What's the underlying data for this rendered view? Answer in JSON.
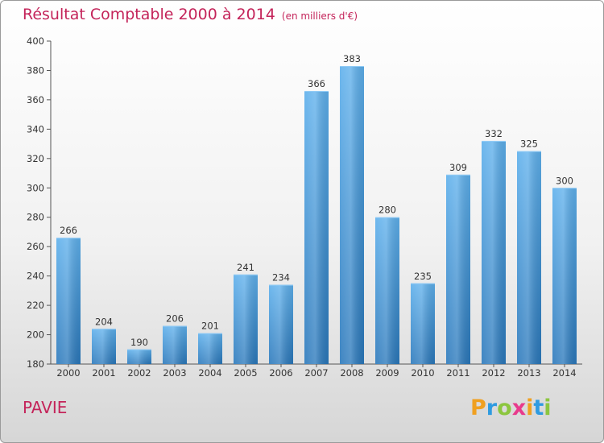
{
  "chart_data": {
    "type": "bar",
    "title": "Résultat Comptable 2000 à 2014",
    "subtitle": "(en milliers d'€)",
    "categories": [
      "2000",
      "2001",
      "2002",
      "2003",
      "2004",
      "2005",
      "2006",
      "2007",
      "2008",
      "2009",
      "2010",
      "2011",
      "2012",
      "2013",
      "2014"
    ],
    "values": [
      266,
      204,
      190,
      206,
      201,
      241,
      234,
      366,
      383,
      280,
      235,
      309,
      332,
      325,
      300
    ],
    "ylim": [
      180,
      400
    ],
    "yticks": [
      180,
      200,
      220,
      240,
      260,
      280,
      300,
      320,
      340,
      360,
      380,
      400
    ],
    "xlabel": "",
    "ylabel": "",
    "grid": false,
    "legend": "none",
    "bar_color": "#3a8fd4"
  },
  "commune": "PAVIE",
  "logo": {
    "letters": [
      "P",
      "r",
      "o",
      "x",
      "i",
      "t",
      "i"
    ],
    "colors": [
      "#f0a020",
      "#2f9be0",
      "#8cc63f",
      "#e83a8c",
      "#f0a020",
      "#2f9be0",
      "#8cc63f"
    ]
  }
}
